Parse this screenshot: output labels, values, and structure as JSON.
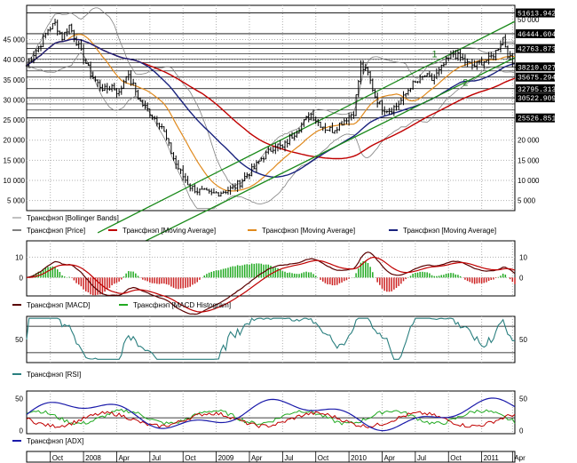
{
  "chart_data": {
    "type": "line",
    "instrument": "Трансфнэп",
    "price_panel": {
      "yticks": [
        "45 000",
        "40 000",
        "35 000",
        "30 000",
        "25 000",
        "20 000",
        "15 000",
        "10 000",
        "5 000"
      ],
      "ytick_values": [
        45000,
        40000,
        35000,
        30000,
        25000,
        20000,
        15000,
        10000,
        5000
      ],
      "ytick_right_extra": [
        {
          "label": "50 000",
          "value": 50000
        }
      ],
      "ylim": [
        2500,
        53500
      ],
      "levels": [
        {
          "label": "51613.942",
          "value": 51613.942
        },
        {
          "label": "46444.604",
          "value": 46444.604
        },
        {
          "label": "42763.873",
          "value": 42763.873
        },
        {
          "label": "38210.027",
          "value": 38210.027
        },
        {
          "label": "35675.294",
          "value": 35675.294
        },
        {
          "label": "32795.313",
          "value": 32795.313
        },
        {
          "label": "30522.909",
          "value": 30522.909
        },
        {
          "label": "25526.851",
          "value": 25526.851
        }
      ],
      "channel_labels": [
        "1",
        "2"
      ],
      "close_series": [
        [
          0,
          38500
        ],
        [
          3,
          41500
        ],
        [
          6,
          44000
        ],
        [
          9,
          47500
        ],
        [
          12,
          49000
        ],
        [
          15,
          45500
        ],
        [
          18,
          48500
        ],
        [
          21,
          44500
        ],
        [
          24,
          40500
        ],
        [
          27,
          36500
        ],
        [
          30,
          34000
        ],
        [
          33,
          32500
        ],
        [
          36,
          33500
        ],
        [
          39,
          31500
        ],
        [
          42,
          36500
        ],
        [
          45,
          33500
        ],
        [
          48,
          29500
        ],
        [
          51,
          27500
        ],
        [
          54,
          25500
        ],
        [
          57,
          23500
        ],
        [
          60,
          18500
        ],
        [
          63,
          14000
        ],
        [
          66,
          11000
        ],
        [
          69,
          8500
        ],
        [
          72,
          7500
        ],
        [
          75,
          7000
        ],
        [
          78,
          6500
        ],
        [
          81,
          7000
        ],
        [
          84,
          7500
        ],
        [
          87,
          8000
        ],
        [
          90,
          9500
        ],
        [
          93,
          11500
        ],
        [
          96,
          13000
        ],
        [
          99,
          15500
        ],
        [
          102,
          17000
        ],
        [
          105,
          19000
        ],
        [
          108,
          18000
        ],
        [
          111,
          20500
        ],
        [
          114,
          22500
        ],
        [
          117,
          24500
        ],
        [
          120,
          26500
        ],
        [
          123,
          24500
        ],
        [
          126,
          23000
        ],
        [
          129,
          22500
        ],
        [
          132,
          24000
        ],
        [
          135,
          25500
        ],
        [
          138,
          27000
        ],
        [
          141,
          38500
        ],
        [
          144,
          36500
        ],
        [
          147,
          31000
        ],
        [
          150,
          28000
        ],
        [
          153,
          27500
        ],
        [
          156,
          28500
        ],
        [
          159,
          30500
        ],
        [
          162,
          33500
        ],
        [
          165,
          34500
        ],
        [
          168,
          36000
        ],
        [
          171,
          35000
        ],
        [
          174,
          37000
        ],
        [
          177,
          39500
        ],
        [
          180,
          41500
        ],
        [
          183,
          40500
        ],
        [
          186,
          39000
        ],
        [
          189,
          38500
        ],
        [
          192,
          39500
        ],
        [
          195,
          40000
        ],
        [
          198,
          42000
        ],
        [
          201,
          45500
        ],
        [
          203,
          41500
        ],
        [
          205,
          39000
        ]
      ],
      "series": [
        {
          "name": "Трансфнэп [Price]",
          "color": "#000000"
        },
        {
          "name": "Трансфнэп [Bollinger Bands]",
          "color": "#808080"
        },
        {
          "name": "Трансфнэп [Moving Average]",
          "color": "#c00000"
        },
        {
          "name": "Трансфнэп [Moving Average]",
          "color": "#e08a1e"
        },
        {
          "name": "Трансфнэп [Moving Average]",
          "color": "#1a237e"
        }
      ]
    },
    "macd_panel": {
      "yticks": [
        "10",
        "0"
      ],
      "ytick_values": [
        10,
        0
      ],
      "ylim": [
        -9,
        18
      ],
      "series": [
        {
          "name": "Трансфнэп [MACD]",
          "color": "#5a0000"
        },
        {
          "name": "Трансфнэп [MACD Histogram]",
          "color": "#22aa22"
        }
      ]
    },
    "rsi_panel": {
      "yticks": [
        "50"
      ],
      "ytick_values": [
        50
      ],
      "levels": [
        30,
        70
      ],
      "ylim": [
        15,
        85
      ],
      "series": [
        {
          "name": "Трансфнэп [RSI]",
          "color": "#2a7f7f"
        }
      ]
    },
    "adx_panel": {
      "yticks": [
        "50",
        "0"
      ],
      "ytick_values": [
        50,
        0
      ],
      "ylim": [
        -5,
        62
      ],
      "series": [
        {
          "name": "Трансфнэп [ADX]",
          "color": "#1a1aaa"
        }
      ]
    },
    "x_axis": {
      "labels": [
        "Oct",
        "2008",
        "Apr",
        "Jul",
        "Oct",
        "2009",
        "Apr",
        "Jul",
        "Oct",
        "2010",
        "Apr",
        "Jul",
        "Oct",
        "2011",
        "Apr"
      ],
      "dates": [
        "2007-10",
        "2008-01",
        "2008-04",
        "2008-07",
        "2008-10",
        "2009-01",
        "2009-04",
        "2009-07",
        "2009-10",
        "2010-01",
        "2010-04",
        "2010-07",
        "2010-10",
        "2011-01",
        "2011-04"
      ]
    },
    "grid": true
  }
}
